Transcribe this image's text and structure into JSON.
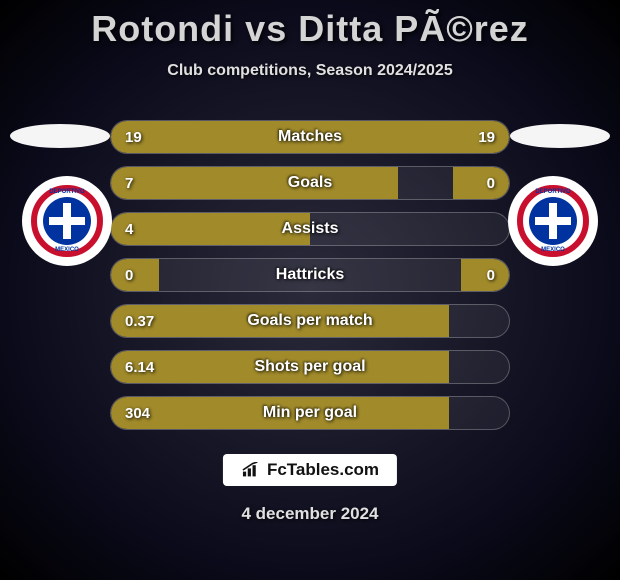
{
  "title": "Rotondi vs Ditta PÃ©rez",
  "subtitle": "Club competitions, Season 2024/2025",
  "footer": {
    "site": "FcTables.com",
    "date": "4 december 2024"
  },
  "colors": {
    "bar_fill": "#a08a2a",
    "text": "#ffffff",
    "crest_red": "#c8102e",
    "crest_blue": "#0033a0",
    "background_inner": "#2a2a3a",
    "background_outer": "#000000"
  },
  "metrics": [
    {
      "label": "Matches",
      "left_val": "19",
      "right_val": "19",
      "left_pct": 50,
      "right_pct": 50,
      "show_right": true
    },
    {
      "label": "Goals",
      "left_val": "7",
      "right_val": "0",
      "left_pct": 72,
      "right_pct": 14,
      "show_right": true
    },
    {
      "label": "Assists",
      "left_val": "4",
      "right_val": "",
      "left_pct": 50,
      "right_pct": 0,
      "show_right": false
    },
    {
      "label": "Hattricks",
      "left_val": "0",
      "right_val": "0",
      "left_pct": 12,
      "right_pct": 12,
      "show_right": true
    },
    {
      "label": "Goals per match",
      "left_val": "0.37",
      "right_val": "",
      "left_pct": 85,
      "right_pct": 0,
      "show_right": false
    },
    {
      "label": "Shots per goal",
      "left_val": "6.14",
      "right_val": "",
      "left_pct": 85,
      "right_pct": 0,
      "show_right": false
    },
    {
      "label": "Min per goal",
      "left_val": "304",
      "right_val": "",
      "left_pct": 85,
      "right_pct": 0,
      "show_right": false
    }
  ]
}
